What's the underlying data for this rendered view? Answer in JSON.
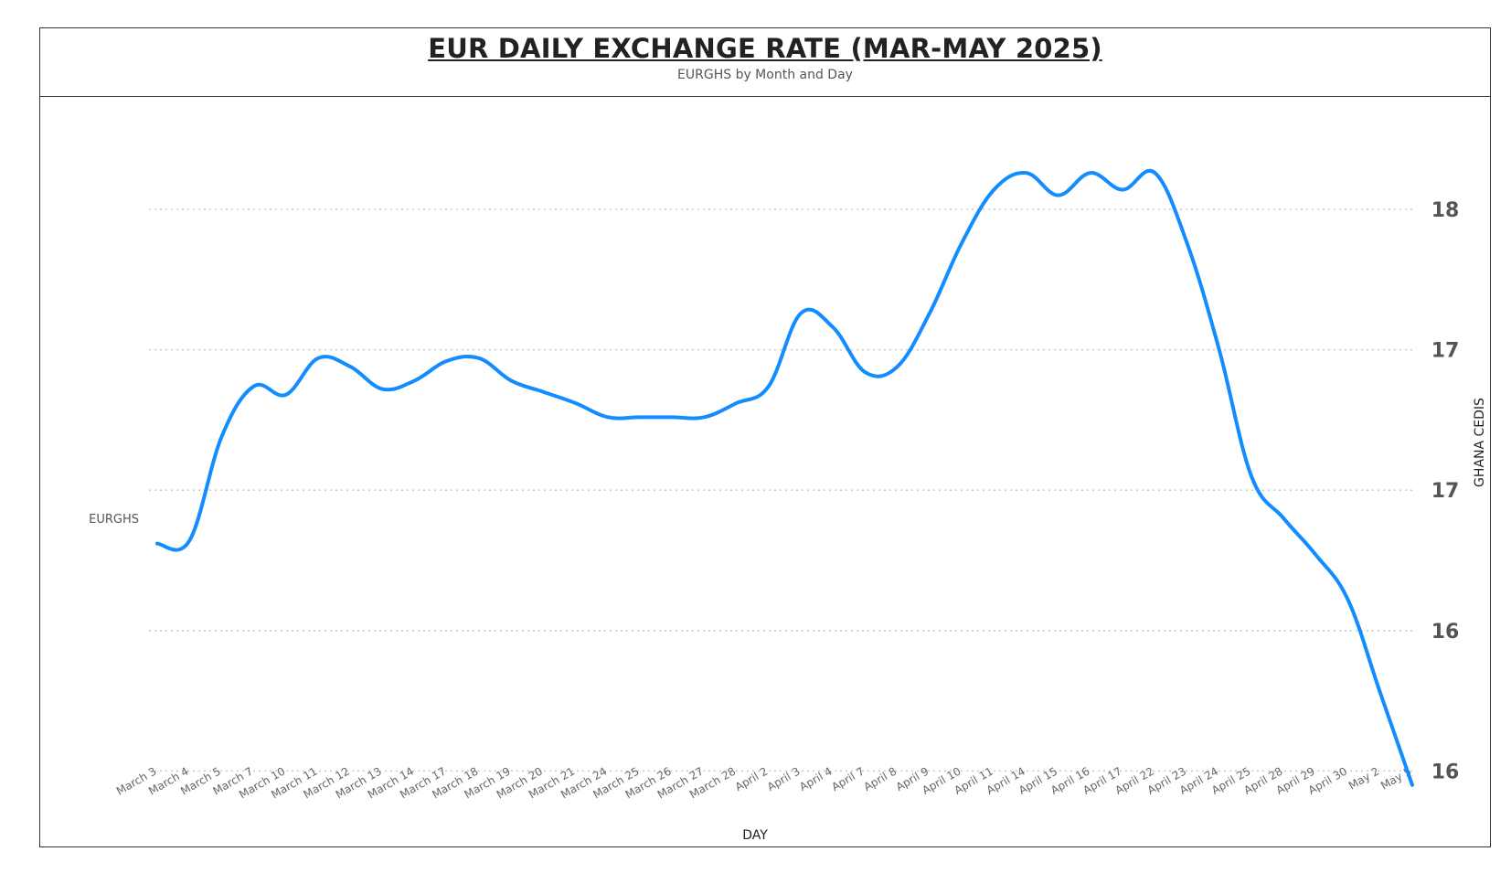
{
  "chart_data": {
    "type": "line",
    "title": "EUR DAILY EXCHANGE RATE (MAR-MAY 2025)",
    "subtitle": "EURGHS by Month and Day",
    "xlabel": "DAY",
    "ylabel": "GHANA CEDIS",
    "y_ticks": [
      {
        "value": 15.5,
        "label": "16"
      },
      {
        "value": 16.0,
        "label": "16"
      },
      {
        "value": 16.5,
        "label": "17"
      },
      {
        "value": 17.0,
        "label": "17"
      },
      {
        "value": 17.5,
        "label": "18"
      }
    ],
    "ylim": [
      15.42,
      17.92
    ],
    "grid": true,
    "categories": [
      "March 3",
      "March 4",
      "March 5",
      "March 7",
      "March 10",
      "March 11",
      "March 12",
      "March 13",
      "March 14",
      "March 17",
      "March 18",
      "March 19",
      "March 20",
      "March 21",
      "March 24",
      "March 25",
      "March 26",
      "March 27",
      "March 28",
      "April 2",
      "April 3",
      "April 4",
      "April 7",
      "April 8",
      "April 9",
      "April 10",
      "April 11",
      "April 14",
      "April 15",
      "April 16",
      "April 17",
      "April 22",
      "April 23",
      "April 24",
      "April 25",
      "April 28",
      "April 29",
      "April 30",
      "May 2",
      "May 5"
    ],
    "series": [
      {
        "name": "EURGHS",
        "color": "#118DFF",
        "values": [
          16.31,
          16.32,
          16.69,
          16.87,
          16.84,
          16.97,
          16.94,
          16.86,
          16.89,
          16.96,
          16.97,
          16.89,
          16.85,
          16.81,
          16.76,
          16.76,
          16.76,
          16.76,
          16.81,
          16.87,
          17.13,
          17.08,
          16.92,
          16.94,
          17.13,
          17.38,
          17.57,
          17.63,
          17.55,
          17.63,
          17.57,
          17.63,
          17.38,
          17.0,
          16.55,
          16.4,
          16.27,
          16.11,
          15.78,
          15.45
        ]
      }
    ]
  }
}
